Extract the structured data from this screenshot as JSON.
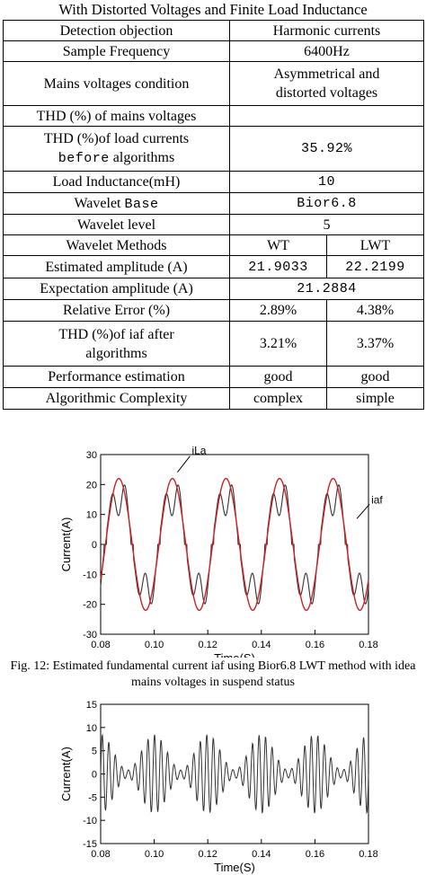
{
  "table": {
    "caption": "With Distorted Voltages and Finite Load Inductance",
    "rows": [
      {
        "label": "Detection objection",
        "value": "Harmonic currents"
      },
      {
        "label": "Sample Frequency",
        "value": "6400Hz"
      },
      {
        "label": "Mains voltages condition",
        "value": "Asymmetrical and distorted voltages"
      },
      {
        "label": "THD (%) of mains voltages",
        "value": ""
      },
      {
        "label_a": "THD (%)of load currents",
        "label_b": "before",
        "label_c": "algorithms",
        "value": "35.92%"
      },
      {
        "label": "Load Inductance(mH)",
        "value": "10"
      },
      {
        "label_a": "Wavelet",
        "label_b": "Base",
        "value": "Bior6.8"
      },
      {
        "label": "Wavelet level",
        "value": "5"
      },
      {
        "label": "Wavelet Methods",
        "wt": "WT",
        "lwt": "LWT"
      },
      {
        "label": "Estimated amplitude (A)",
        "wt": "21.9033",
        "lwt": "22.2199"
      },
      {
        "label": "Expectation amplitude (A)",
        "value": "21.2884"
      },
      {
        "label": "Relative Error (%)",
        "wt": "2.89%",
        "lwt": "4.38%"
      },
      {
        "label": "THD (%)of iaf after algorithms",
        "wt": "3.21%",
        "lwt": "3.37%"
      },
      {
        "label": "Performance estimation",
        "wt": "good",
        "lwt": "good"
      },
      {
        "label": "Algorithmic Complexity",
        "wt": "complex",
        "lwt": "simple"
      }
    ]
  },
  "figure_caption": "Fig. 12: Estimated fundamental current iaf using Bior6.8 LWT method with idea mains voltages in suspend status",
  "chart_data": [
    {
      "type": "line",
      "xlabel": "Time(S)",
      "ylabel": "Current(A)",
      "xlim": [
        0.08,
        0.18
      ],
      "ylim": [
        -30,
        30
      ],
      "xticks": [
        "0.08",
        "0.10",
        "0.12",
        "0.14",
        "0.16",
        "0.18"
      ],
      "yticks": [
        "-30",
        "-20",
        "-10",
        "0",
        "10",
        "20",
        "30"
      ],
      "annotations": [
        "iLa",
        "iaf"
      ],
      "series": [
        {
          "name": "iLa",
          "color": "#333333",
          "amplitude_peak": 24,
          "frequency_hz": 50,
          "shape": "distorted stepped"
        },
        {
          "name": "iaf",
          "color": "#cc2222",
          "amplitude_peak": 22,
          "frequency_hz": 50,
          "shape": "sinusoid"
        }
      ]
    },
    {
      "type": "line",
      "xlabel": "Time(S)",
      "ylabel": "Current(A)",
      "xlim": [
        0.08,
        0.18
      ],
      "ylim": [
        -15,
        15
      ],
      "xticks": [
        "0.08",
        "0.10",
        "0.12",
        "0.14",
        "0.16",
        "0.18"
      ],
      "yticks": [
        "-15",
        "-10",
        "-5",
        "0",
        "5",
        "10",
        "15"
      ],
      "series": [
        {
          "color": "#333333",
          "amplitude_peak": 10,
          "shape": "harmonic oscillation"
        }
      ]
    }
  ]
}
